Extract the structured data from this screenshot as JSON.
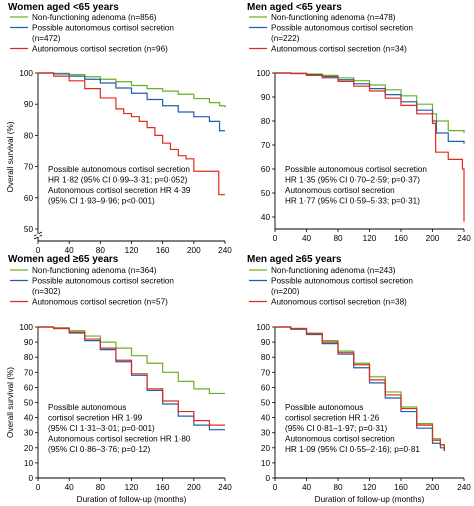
{
  "colors": {
    "nfa": "#6ab023",
    "pacs": "#1f5fa8",
    "acs": "#e02a1f",
    "axis": "#000000"
  },
  "chart_data": [
    {
      "type": "line",
      "title": "Women aged <65 years",
      "xlabel": "",
      "ylabel": "Overall survival (%)",
      "xlim": [
        0,
        240
      ],
      "ylim": [
        50,
        100
      ],
      "axis_break": true,
      "x_ticks": [
        "0",
        "40",
        "80",
        "120",
        "160",
        "200",
        "240"
      ],
      "y_ticks": [
        "50",
        "60",
        "70",
        "80",
        "90",
        "100"
      ],
      "legend": [
        "Non-functioning adenoma (n=856)",
        "Possible autonomous cortisol secretion",
        "(n=472)",
        "Autonomous cortisol secretion (n=96)"
      ],
      "annotation": [
        "Possible autonomous cortisol secretion",
        "HR 1·82 (95% CI 0·99–3·31; p=0·052)",
        "Autonomous cortisol secretion HR 4·39",
        "(95% CI 1·93–9·96; p<0·001)"
      ],
      "series": [
        {
          "color": "nfa",
          "x": [
            0,
            20,
            40,
            60,
            80,
            100,
            120,
            140,
            160,
            180,
            200,
            220,
            233,
            240
          ],
          "y": [
            100,
            99.9,
            99.5,
            98.8,
            98,
            97.2,
            96,
            95,
            94.2,
            93.2,
            91.8,
            90.5,
            89.5,
            89
          ]
        },
        {
          "color": "pacs",
          "x": [
            0,
            20,
            40,
            60,
            80,
            100,
            120,
            140,
            160,
            180,
            200,
            220,
            233,
            240
          ],
          "y": [
            100,
            99.7,
            99,
            98,
            96.8,
            95.2,
            93.5,
            91.5,
            89.5,
            87.5,
            86,
            84.5,
            81.5,
            81.5
          ]
        },
        {
          "color": "acs",
          "x": [
            0,
            20,
            40,
            60,
            80,
            100,
            110,
            120,
            130,
            140,
            150,
            160,
            170,
            180,
            190,
            200,
            210,
            220,
            232,
            240
          ],
          "y": [
            100,
            99,
            97.5,
            95,
            92,
            88.5,
            87,
            86,
            84.5,
            82.5,
            80,
            77.5,
            75.5,
            73.5,
            72.5,
            68.5,
            68.5,
            68.5,
            61,
            61
          ]
        }
      ]
    },
    {
      "type": "line",
      "title": "Men aged <65 years",
      "xlabel": "",
      "ylabel": "",
      "xlim": [
        0,
        240
      ],
      "ylim": [
        35,
        100
      ],
      "axis_break": false,
      "x_ticks": [
        "0",
        "40",
        "80",
        "120",
        "160",
        "200",
        "240"
      ],
      "y_ticks": [
        "40",
        "50",
        "60",
        "70",
        "80",
        "90",
        "100"
      ],
      "legend": [
        "Non-functioning adenoma (n=478)",
        "Possible autonomous cortisol secretion",
        "(n=222)",
        "Autonomous cortisol secretion (n=34)"
      ],
      "annotation": [
        "Possible autonomous cortisol secretion",
        "HR 1·35 (95% CI 0·70–2·59; p=0·37)",
        "Autonomous cortisol secretion",
        "HR 1·77 (95% CI 0·59–5·33; p=0·31)"
      ],
      "series": [
        {
          "color": "nfa",
          "x": [
            0,
            20,
            40,
            60,
            80,
            100,
            120,
            140,
            160,
            180,
            200,
            205,
            220,
            240
          ],
          "y": [
            100,
            99.9,
            99.6,
            99,
            98,
            96.8,
            95,
            93,
            90.5,
            87,
            83,
            80,
            76,
            75
          ]
        },
        {
          "color": "pacs",
          "x": [
            0,
            20,
            40,
            60,
            80,
            100,
            120,
            140,
            160,
            180,
            200,
            205,
            220,
            240
          ],
          "y": [
            100,
            99.8,
            99.3,
            98.5,
            97.2,
            95.5,
            93.5,
            91,
            88,
            84.5,
            80,
            75,
            71.5,
            70.5
          ]
        },
        {
          "color": "acs",
          "x": [
            0,
            20,
            40,
            60,
            80,
            100,
            120,
            140,
            160,
            180,
            200,
            204,
            220,
            238,
            240
          ],
          "y": [
            100,
            99.8,
            99,
            98,
            96.5,
            94.5,
            92.5,
            89.5,
            86.5,
            83,
            79,
            67,
            64,
            60,
            38
          ]
        }
      ]
    },
    {
      "type": "line",
      "title": "Women aged ≥65 years",
      "xlabel": "Duration of follow-up (months)",
      "ylabel": "Overall survival (%)",
      "xlim": [
        0,
        240
      ],
      "ylim": [
        0,
        100
      ],
      "axis_break": false,
      "x_ticks": [
        "0",
        "40",
        "80",
        "120",
        "160",
        "200",
        "240"
      ],
      "y_ticks": [
        "0",
        "10",
        "20",
        "30",
        "40",
        "50",
        "60",
        "70",
        "80",
        "90",
        "100"
      ],
      "legend": [
        "Non-functioning adenoma (n=364)",
        "Possible autonomous cortisol secretion",
        "(n=302)",
        "Autonomous cortisol secretion (n=57)"
      ],
      "annotation": [
        "Possible autonomous",
        "cortisol secretion HR 1·99",
        "(95% CI 1·31–3·01; p=0·001)",
        "Autonomous cortisol secretion HR 1·80",
        "(95% CI 0·86–3·76; p=0·12)"
      ],
      "series": [
        {
          "color": "nfa",
          "x": [
            0,
            20,
            40,
            60,
            80,
            100,
            120,
            140,
            160,
            180,
            200,
            220,
            240
          ],
          "y": [
            100,
            99.5,
            97.5,
            94,
            90,
            86,
            81,
            76,
            70,
            64,
            59,
            56,
            56
          ]
        },
        {
          "color": "pacs",
          "x": [
            0,
            20,
            40,
            60,
            80,
            100,
            120,
            140,
            160,
            180,
            200,
            220,
            240
          ],
          "y": [
            100,
            99,
            96,
            91,
            85,
            77,
            68,
            58,
            49,
            41,
            35,
            32,
            32
          ]
        },
        {
          "color": "acs",
          "x": [
            0,
            20,
            40,
            60,
            80,
            100,
            120,
            140,
            160,
            180,
            200,
            220,
            240
          ],
          "y": [
            100,
            99,
            96.5,
            92,
            86,
            78,
            69,
            59,
            51,
            44,
            38,
            35,
            35
          ]
        }
      ]
    },
    {
      "type": "line",
      "title": "Men aged ≥65 years",
      "xlabel": "Duration of follow-up (months)",
      "ylabel": "",
      "xlim": [
        0,
        240
      ],
      "ylim": [
        0,
        100
      ],
      "axis_break": false,
      "x_ticks": [
        "0",
        "40",
        "80",
        "120",
        "160",
        "200",
        "240"
      ],
      "y_ticks": [
        "0",
        "10",
        "20",
        "30",
        "40",
        "50",
        "60",
        "70",
        "80",
        "90",
        "100"
      ],
      "legend": [
        "Non-functioning adenoma (n=243)",
        "Possible autonomous cortisol secretion",
        "(n=200)",
        "Autonomous cortisol secretion (n=38)"
      ],
      "annotation": [
        "Possible autonomous",
        "cortisol secretion HR 1·26",
        "(95% CI 0·81–1·97; p=0·31)",
        "Autonomous cortisol secretion",
        "HR 1·09 (95% CI 0·55–2·16); p=0·81"
      ],
      "series": [
        {
          "color": "nfa",
          "x": [
            0,
            20,
            40,
            60,
            80,
            100,
            120,
            140,
            160,
            180,
            200,
            210,
            215
          ],
          "y": [
            100,
            99,
            96,
            91,
            84,
            76,
            67,
            57,
            47,
            36,
            26,
            22,
            18
          ]
        },
        {
          "color": "pacs",
          "x": [
            0,
            20,
            40,
            60,
            80,
            100,
            120,
            140,
            160,
            180,
            200,
            210,
            215
          ],
          "y": [
            100,
            98.5,
            95,
            89,
            82,
            73,
            63,
            53,
            44,
            33,
            23,
            20,
            18
          ]
        },
        {
          "color": "acs",
          "x": [
            0,
            20,
            40,
            60,
            80,
            100,
            120,
            140,
            160,
            180,
            200,
            210,
            215
          ],
          "y": [
            100,
            99,
            95.5,
            90,
            83,
            75,
            65,
            55,
            46,
            35,
            25,
            22,
            18
          ]
        }
      ]
    }
  ]
}
